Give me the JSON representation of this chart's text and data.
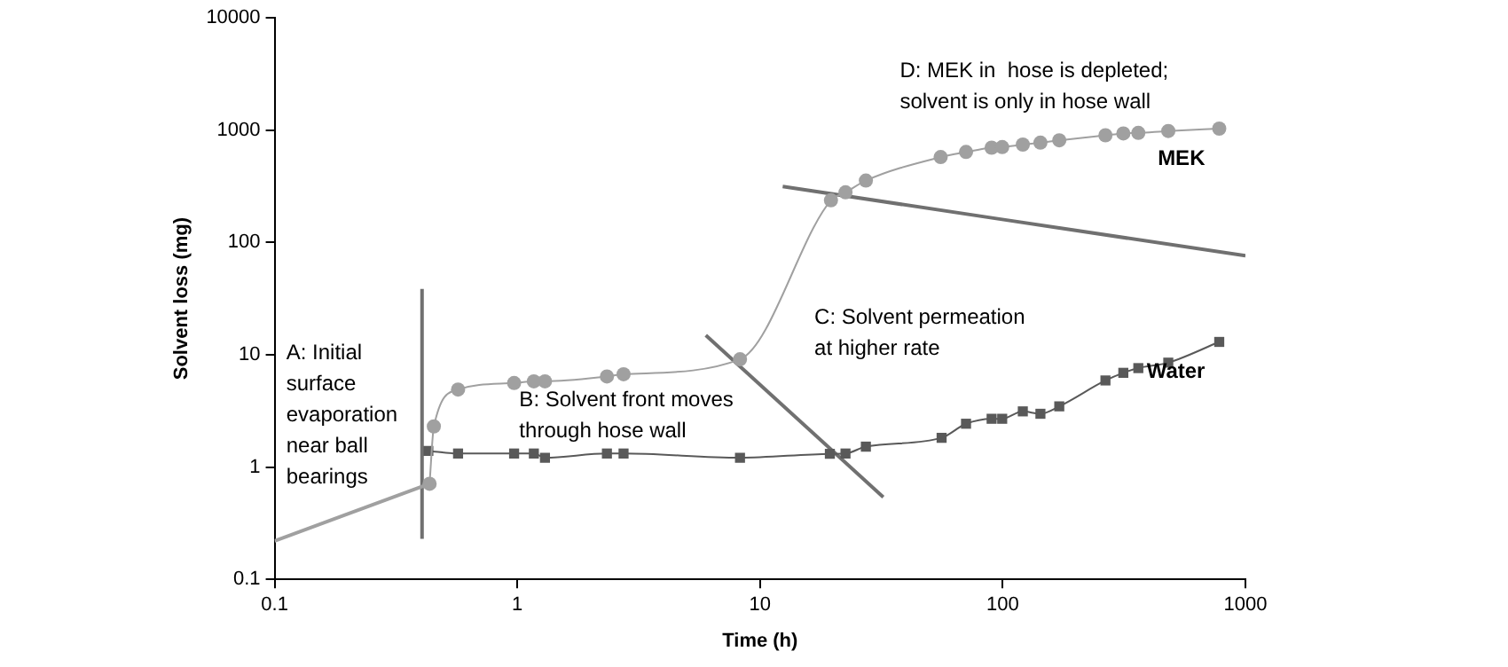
{
  "chart_data": {
    "type": "line",
    "xlabel": "Time (h)",
    "ylabel": "Solvent loss (mg)",
    "log": "xy",
    "grid": false,
    "legend": false,
    "xlim": [
      0.1,
      1000
    ],
    "xticks": [
      0.1,
      1,
      10,
      100,
      1000
    ],
    "ylim": [
      0.1,
      10000
    ],
    "yticks": [
      0.1,
      1,
      10,
      100,
      1000,
      10000
    ],
    "series": [
      {
        "name": "MEK",
        "color": "#a0a0a0",
        "marker": "circle",
        "x": [
          0.435,
          0.453,
          0.57,
          0.97,
          1.17,
          1.3,
          2.34,
          2.74,
          8.27,
          19.6,
          22.5,
          27.3,
          55.5,
          70.6,
          90,
          99.5,
          121,
          143,
          171,
          265,
          314,
          362,
          481,
          780
        ],
        "values": [
          0.71,
          2.3,
          4.9,
          5.6,
          5.8,
          5.8,
          6.4,
          6.7,
          9.1,
          237,
          279,
          355,
          575,
          638,
          697,
          705,
          743,
          772,
          811,
          899,
          934,
          944,
          982,
          1030
        ]
      },
      {
        "name": "Water",
        "color": "#595959",
        "marker": "square",
        "x": [
          0.43,
          0.57,
          0.97,
          1.17,
          1.3,
          2.34,
          2.74,
          8.27,
          19.4,
          22.5,
          27.3,
          56,
          70.6,
          90,
          99.5,
          121,
          143,
          171,
          265,
          314,
          362,
          481,
          780
        ],
        "values": [
          1.39,
          1.32,
          1.32,
          1.32,
          1.21,
          1.32,
          1.32,
          1.21,
          1.31,
          1.32,
          1.52,
          1.82,
          2.43,
          2.69,
          2.69,
          3.13,
          2.98,
          3.47,
          5.9,
          6.9,
          7.6,
          8.5,
          13
        ]
      },
      {
        "type": "line",
        "color": "#a0a0a0",
        "marker": "none",
        "x": [
          0.1,
          0.435
        ],
        "values": [
          0.22,
          0.71
        ]
      },
      {
        "type": "line",
        "color": "#707070",
        "marker": "none",
        "x": [
          0.405,
          0.405
        ],
        "values": [
          38.6,
          0.23
        ]
      },
      {
        "type": "line",
        "color": "#707070",
        "marker": "none",
        "x": [
          5.98,
          32.2
        ],
        "values": [
          14.9,
          0.54
        ]
      },
      {
        "type": "line",
        "color": "#707070",
        "marker": "none",
        "x": [
          12.4,
          1000
        ],
        "values": [
          314,
          76
        ]
      }
    ],
    "annotations": [
      "A: Initial\nsurface\nevaporation\nnear ball\nbearings",
      "B: Solvent front moves\nthrough hose wall",
      "C: Solvent permeation\nat higher rate",
      "D: MEK in  hose is depleted;\nsolvent is only in hose wall"
    ]
  }
}
